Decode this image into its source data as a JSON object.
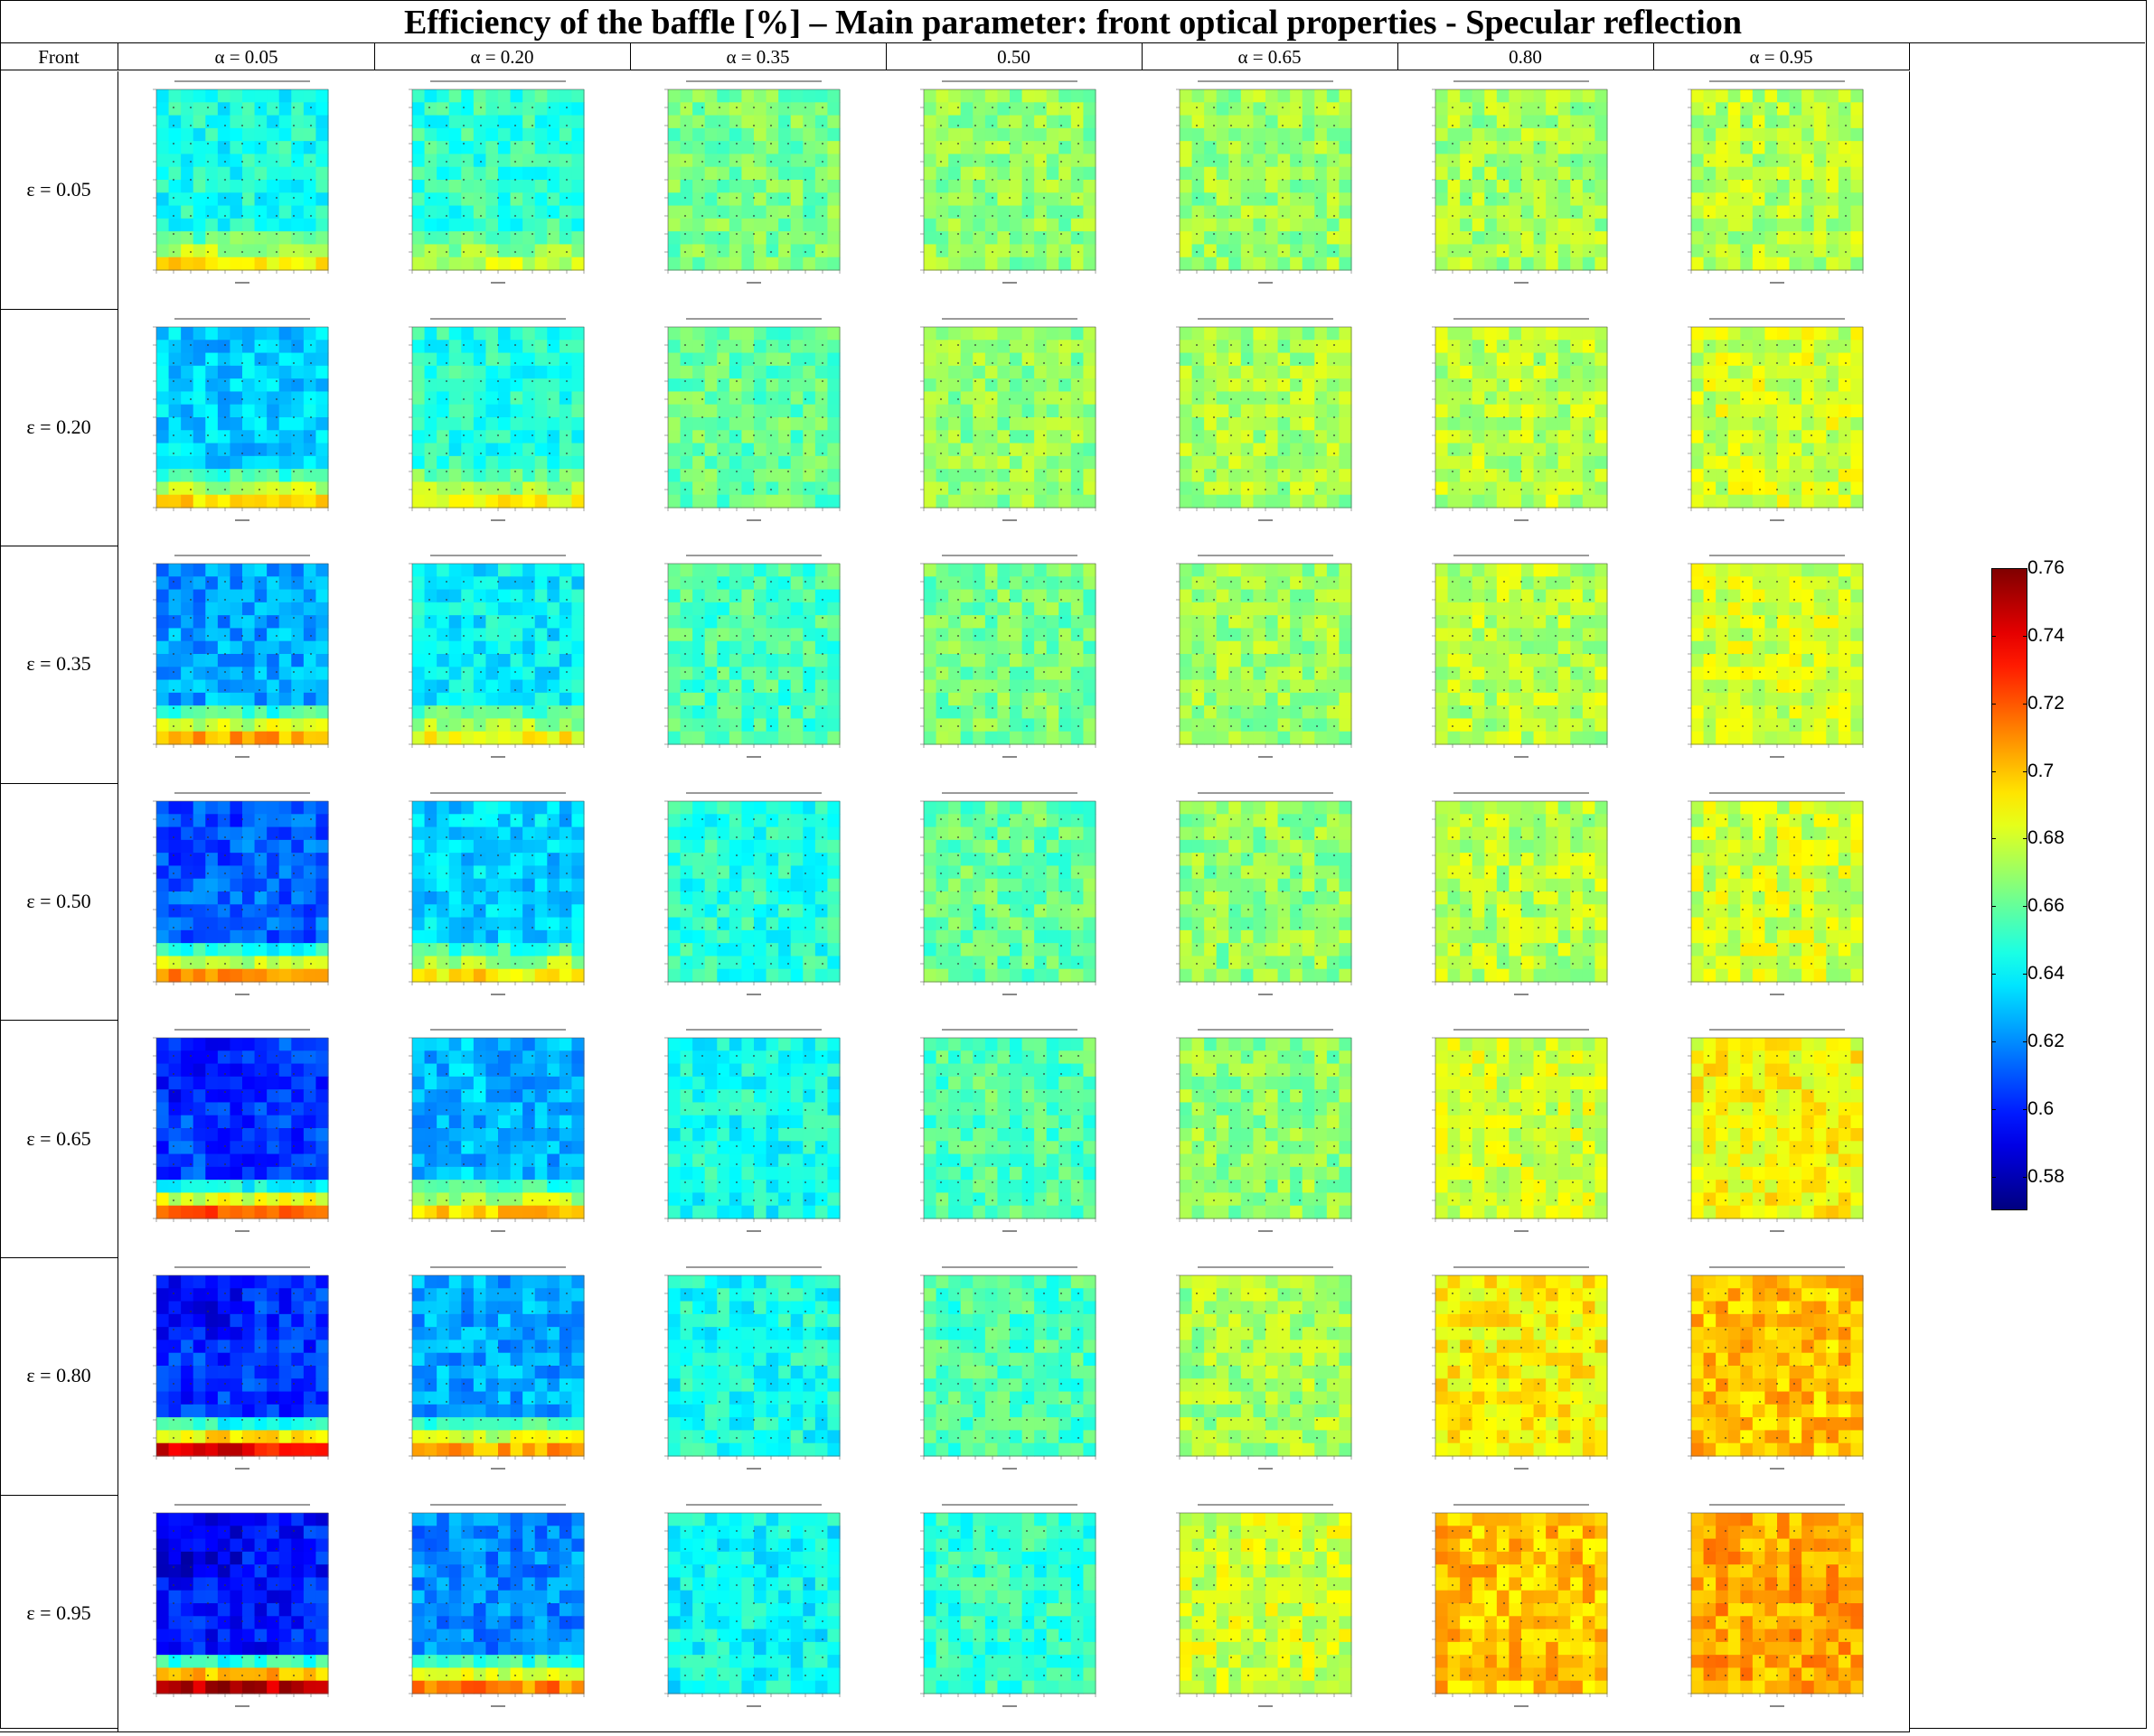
{
  "title": "Efficiency of the baffle [%] – Main parameter: front optical properties - Specular reflection",
  "corner_label": "Front",
  "column_headers": [
    "α = 0.05",
    "α = 0.20",
    "α = 0.35",
    "0.50",
    "α = 0.65",
    "0.80",
    "α = 0.95"
  ],
  "row_headers": [
    "ε = 0.05",
    "ε = 0.20",
    "ε = 0.35",
    "ε = 0.50",
    "ε = 0.65",
    "ε = 0.80",
    "ε = 0.95"
  ],
  "colorbar": {
    "ticks": [
      "0.58",
      "0.6",
      "0.62",
      "0.64",
      "0.66",
      "0.68",
      "0.7",
      "0.72",
      "0.74",
      "0.76"
    ],
    "range": [
      0.57,
      0.76
    ],
    "colormap": "jet"
  },
  "chart_data": {
    "type": "heatmap",
    "title": "Efficiency of the baffle [%] – Main parameter: front optical properties - Specular reflection",
    "rows": [
      "ε = 0.05",
      "ε = 0.20",
      "ε = 0.35",
      "ε = 0.50",
      "ε = 0.65",
      "ε = 0.80",
      "ε = 0.95"
    ],
    "columns": [
      "α = 0.05",
      "α = 0.20",
      "α = 0.35",
      "0.50",
      "α = 0.65",
      "0.80",
      "α = 0.95"
    ],
    "mean_efficiency": [
      [
        0.645,
        0.65,
        0.663,
        0.668,
        0.67,
        0.672,
        0.675
      ],
      [
        0.633,
        0.648,
        0.66,
        0.668,
        0.672,
        0.675,
        0.68
      ],
      [
        0.625,
        0.64,
        0.655,
        0.663,
        0.67,
        0.675,
        0.68
      ],
      [
        0.612,
        0.633,
        0.648,
        0.66,
        0.668,
        0.675,
        0.68
      ],
      [
        0.605,
        0.628,
        0.645,
        0.657,
        0.668,
        0.68,
        0.688
      ],
      [
        0.603,
        0.625,
        0.645,
        0.655,
        0.672,
        0.69,
        0.7
      ],
      [
        0.598,
        0.62,
        0.642,
        0.65,
        0.68,
        0.7,
        0.705
      ]
    ],
    "colorbar_range": [
      0.57,
      0.76
    ],
    "colorbar_ticks": [
      0.58,
      0.6,
      0.62,
      0.64,
      0.66,
      0.68,
      0.7,
      0.72,
      0.74,
      0.76
    ],
    "grid": true
  }
}
